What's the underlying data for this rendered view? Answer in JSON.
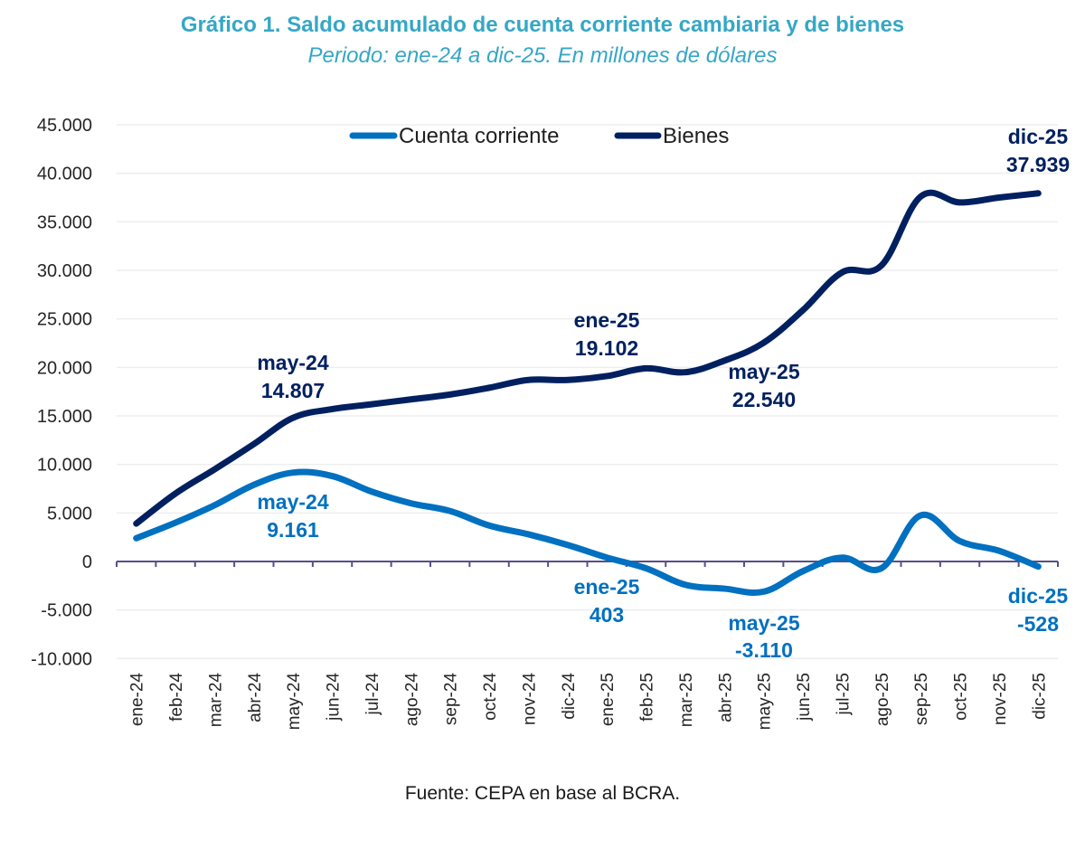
{
  "chart_data": {
    "type": "line",
    "title": "Gráfico 1. Saldo acumulado de cuenta corriente cambiaria y de bienes",
    "subtitle": "Periodo: ene-24 a dic-25. En millones de dólares",
    "source": "Fuente: CEPA en base al BCRA.",
    "xlabel": "",
    "ylabel": "",
    "ylim": [
      -10000,
      45000
    ],
    "yticks": [
      45000,
      40000,
      35000,
      30000,
      25000,
      20000,
      15000,
      10000,
      5000,
      0,
      -5000,
      -10000
    ],
    "ytick_labels": [
      "45.000",
      "40.000",
      "35.000",
      "30.000",
      "25.000",
      "20.000",
      "15.000",
      "10.000",
      "5.000",
      "0",
      "-5.000",
      "-10.000"
    ],
    "grid": true,
    "legend_position": "top-center",
    "categories": [
      "ene-24",
      "feb-24",
      "mar-24",
      "abr-24",
      "may-24",
      "jun-24",
      "jul-24",
      "ago-24",
      "sep-24",
      "oct-24",
      "nov-24",
      "dic-24",
      "ene-25",
      "feb-25",
      "mar-25",
      "abr-25",
      "may-25",
      "jun-25",
      "jul-25",
      "ago-25",
      "sep-25",
      "oct-25",
      "nov-25",
      "dic-25"
    ],
    "series": [
      {
        "name": "Cuenta corriente",
        "color": "#0070c0",
        "values": [
          2400,
          4000,
          5800,
          7900,
          9161,
          8800,
          7200,
          6000,
          5200,
          3700,
          2800,
          1700,
          403,
          -700,
          -2400,
          -2800,
          -3110,
          -1000,
          400,
          -700,
          4750,
          2100,
          1100,
          -528
        ]
      },
      {
        "name": "Bienes",
        "color": "#002060",
        "values": [
          3900,
          7000,
          9500,
          12100,
          14807,
          15700,
          16200,
          16700,
          17200,
          17900,
          18700,
          18700,
          19102,
          19900,
          19500,
          20700,
          22540,
          25900,
          29800,
          30500,
          37600,
          37000,
          37500,
          37939
        ]
      }
    ],
    "annotations": [
      {
        "series": "Bienes",
        "category": "may-24",
        "label": "may-24",
        "value_label": "14.807"
      },
      {
        "series": "Bienes",
        "category": "ene-25",
        "label": "ene-25",
        "value_label": "19.102"
      },
      {
        "series": "Bienes",
        "category": "may-25",
        "label": "may-25",
        "value_label": "22.540"
      },
      {
        "series": "Bienes",
        "category": "dic-25",
        "label": "dic-25",
        "value_label": "37.939"
      },
      {
        "series": "Cuenta corriente",
        "category": "may-24",
        "label": "may-24",
        "value_label": "9.161"
      },
      {
        "series": "Cuenta corriente",
        "category": "ene-25",
        "label": "ene-25",
        "value_label": "403"
      },
      {
        "series": "Cuenta corriente",
        "category": "may-25",
        "label": "may-25",
        "value_label": "-3.110"
      },
      {
        "series": "Cuenta corriente",
        "category": "dic-25",
        "label": "dic-25",
        "value_label": "-528"
      }
    ]
  }
}
